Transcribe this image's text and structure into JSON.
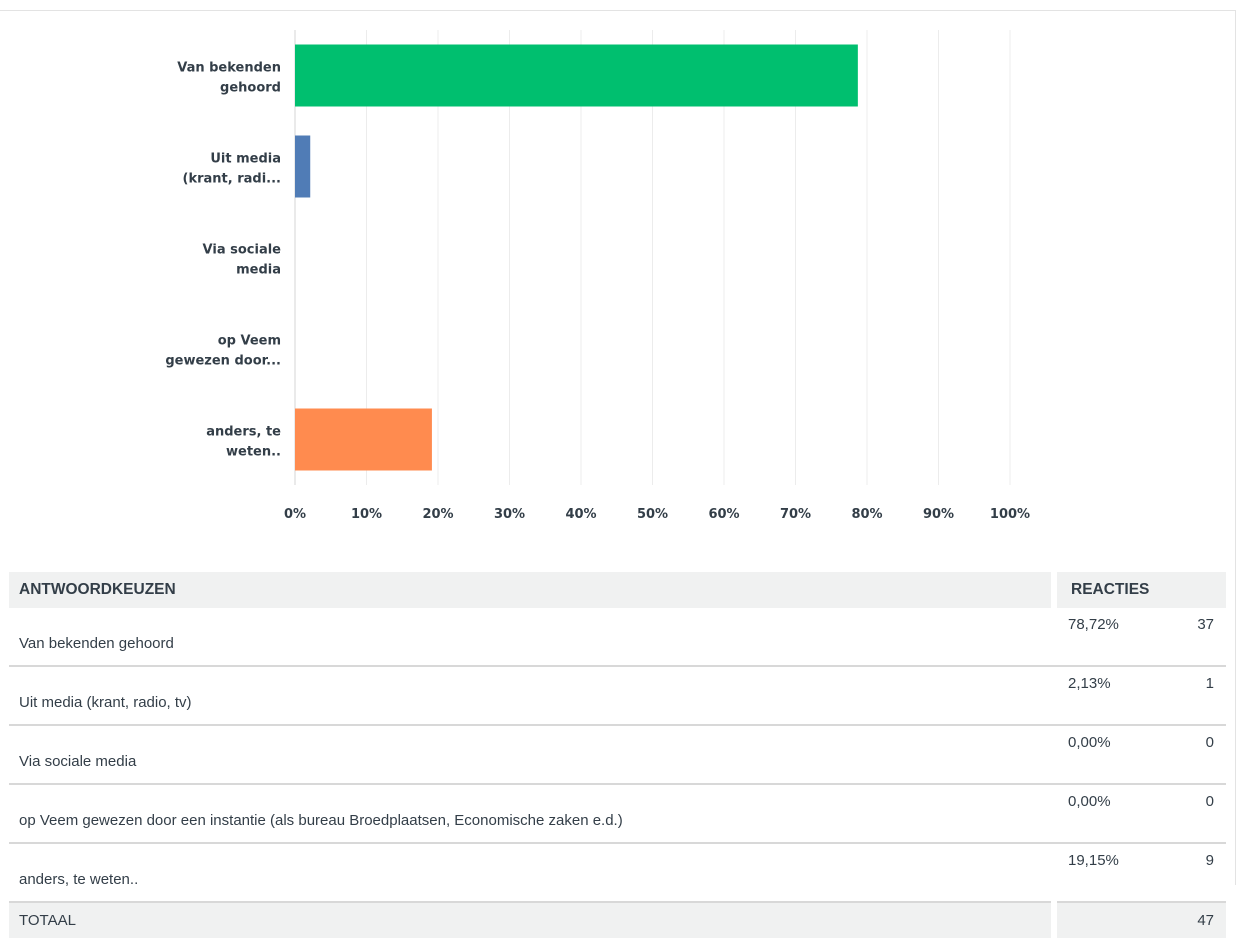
{
  "chart_data": {
    "type": "bar",
    "orientation": "horizontal",
    "categories": [
      "Van bekenden gehoord",
      "Uit media (krant, radi...",
      "Via sociale media",
      "op Veem gewezen door...",
      "anders, te weten.."
    ],
    "category_label_lines": [
      [
        "Van bekenden",
        "gehoord"
      ],
      [
        "Uit media",
        "(krant, radi..."
      ],
      [
        "Via sociale",
        "media"
      ],
      [
        "op Veem",
        "gewezen door..."
      ],
      [
        "anders, te",
        "weten.."
      ]
    ],
    "values": [
      78.72,
      2.13,
      0.0,
      0.0,
      19.15
    ],
    "colors": [
      "#00bf6f",
      "#507cb6",
      "#6bc8cd",
      "#f9be00",
      "#ff8b4f"
    ],
    "xlim": [
      0,
      100
    ],
    "x_ticks": [
      "0%",
      "10%",
      "20%",
      "30%",
      "40%",
      "50%",
      "60%",
      "70%",
      "80%",
      "90%",
      "100%"
    ],
    "grid": true,
    "title": "",
    "xlabel": "",
    "ylabel": ""
  },
  "table": {
    "headers": {
      "choice": "ANTWOORDKEUZEN",
      "responses": "REACTIES"
    },
    "rows": [
      {
        "choice": "Van bekenden gehoord",
        "percent": "78,72%",
        "count": "37"
      },
      {
        "choice": "Uit media (krant, radio, tv)",
        "percent": "2,13%",
        "count": "1"
      },
      {
        "choice": "Via sociale media",
        "percent": "0,00%",
        "count": "0"
      },
      {
        "choice": "op Veem gewezen door een instantie (als bureau Broedplaatsen, Economische zaken e.d.)",
        "percent": "0,00%",
        "count": "0"
      },
      {
        "choice": "anders, te weten..",
        "percent": "19,15%",
        "count": "9"
      }
    ],
    "total": {
      "label": "TOTAAL",
      "count": "47"
    }
  }
}
